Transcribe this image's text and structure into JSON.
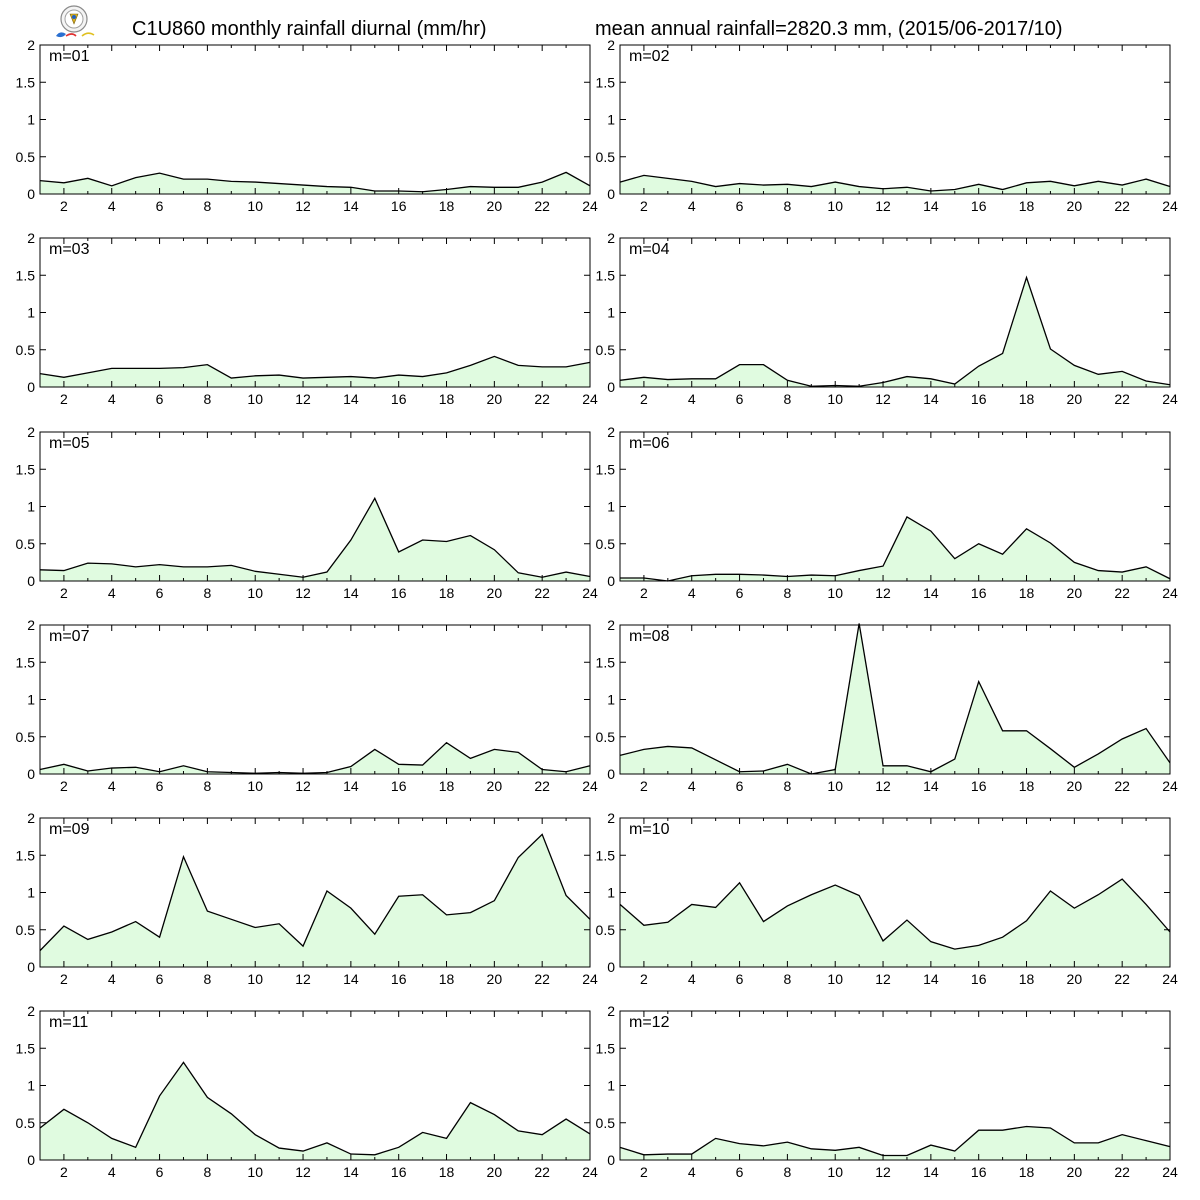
{
  "header": {
    "title_left": "C1U860 monthly rainfall diurnal (mm/hr)",
    "title_right": "mean annual rainfall=2820.3 mm, (2015/06-2017/10)",
    "logo": "lab-seal-logo"
  },
  "colors": {
    "fill": "#e0fbe0",
    "line": "#000000",
    "frame": "#000000"
  },
  "chart_data": [
    {
      "type": "area",
      "label": "m=01",
      "x": [
        1,
        2,
        3,
        4,
        5,
        6,
        7,
        8,
        9,
        10,
        11,
        12,
        13,
        14,
        15,
        16,
        17,
        18,
        19,
        20,
        21,
        22,
        23,
        24
      ],
      "values": [
        0.18,
        0.15,
        0.21,
        0.11,
        0.22,
        0.28,
        0.2,
        0.2,
        0.17,
        0.16,
        0.14,
        0.12,
        0.1,
        0.09,
        0.04,
        0.04,
        0.03,
        0.06,
        0.1,
        0.09,
        0.09,
        0.16,
        0.29,
        0.11
      ],
      "xticks": [
        2,
        4,
        6,
        8,
        10,
        12,
        14,
        16,
        18,
        20,
        22,
        24
      ],
      "yticks": [
        "0",
        "0.5",
        "1",
        "1.5",
        "2"
      ],
      "xlim": [
        1,
        24
      ],
      "ylim": [
        0,
        2
      ]
    },
    {
      "type": "area",
      "label": "m=02",
      "x": [
        1,
        2,
        3,
        4,
        5,
        6,
        7,
        8,
        9,
        10,
        11,
        12,
        13,
        14,
        15,
        16,
        17,
        18,
        19,
        20,
        21,
        22,
        23,
        24
      ],
      "values": [
        0.16,
        0.25,
        0.21,
        0.17,
        0.1,
        0.14,
        0.12,
        0.13,
        0.1,
        0.16,
        0.1,
        0.07,
        0.09,
        0.04,
        0.06,
        0.13,
        0.06,
        0.15,
        0.17,
        0.11,
        0.17,
        0.12,
        0.2,
        0.1
      ],
      "xticks": [
        2,
        4,
        6,
        8,
        10,
        12,
        14,
        16,
        18,
        20,
        22,
        24
      ],
      "yticks": [
        "0",
        "0.5",
        "1",
        "1.5",
        "2"
      ],
      "xlim": [
        1,
        24
      ],
      "ylim": [
        0,
        2
      ]
    },
    {
      "type": "area",
      "label": "m=03",
      "x": [
        1,
        2,
        3,
        4,
        5,
        6,
        7,
        8,
        9,
        10,
        11,
        12,
        13,
        14,
        15,
        16,
        17,
        18,
        19,
        20,
        21,
        22,
        23,
        24
      ],
      "values": [
        0.18,
        0.13,
        0.19,
        0.25,
        0.25,
        0.25,
        0.26,
        0.3,
        0.12,
        0.15,
        0.16,
        0.12,
        0.13,
        0.14,
        0.12,
        0.16,
        0.14,
        0.19,
        0.29,
        0.41,
        0.29,
        0.27,
        0.27,
        0.33
      ],
      "xticks": [
        2,
        4,
        6,
        8,
        10,
        12,
        14,
        16,
        18,
        20,
        22,
        24
      ],
      "yticks": [
        "0",
        "0.5",
        "1",
        "1.5",
        "2"
      ],
      "xlim": [
        1,
        24
      ],
      "ylim": [
        0,
        2
      ]
    },
    {
      "type": "area",
      "label": "m=04",
      "x": [
        1,
        2,
        3,
        4,
        5,
        6,
        7,
        8,
        9,
        10,
        11,
        12,
        13,
        14,
        15,
        16,
        17,
        18,
        19,
        20,
        21,
        22,
        23,
        24
      ],
      "values": [
        0.09,
        0.13,
        0.1,
        0.11,
        0.11,
        0.3,
        0.3,
        0.09,
        0.01,
        0.02,
        0.01,
        0.06,
        0.14,
        0.11,
        0.04,
        0.28,
        0.45,
        1.47,
        0.51,
        0.29,
        0.17,
        0.21,
        0.08,
        0.03
      ],
      "xticks": [
        2,
        4,
        6,
        8,
        10,
        12,
        14,
        16,
        18,
        20,
        22,
        24
      ],
      "yticks": [
        "0",
        "0.5",
        "1",
        "1.5",
        "2"
      ],
      "xlim": [
        1,
        24
      ],
      "ylim": [
        0,
        2
      ]
    },
    {
      "type": "area",
      "label": "m=05",
      "x": [
        1,
        2,
        3,
        4,
        5,
        6,
        7,
        8,
        9,
        10,
        11,
        12,
        13,
        14,
        15,
        16,
        17,
        18,
        19,
        20,
        21,
        22,
        23,
        24
      ],
      "values": [
        0.15,
        0.14,
        0.24,
        0.23,
        0.19,
        0.22,
        0.19,
        0.19,
        0.21,
        0.13,
        0.09,
        0.05,
        0.12,
        0.55,
        1.11,
        0.39,
        0.55,
        0.53,
        0.61,
        0.42,
        0.11,
        0.05,
        0.12,
        0.06
      ],
      "xticks": [
        2,
        4,
        6,
        8,
        10,
        12,
        14,
        16,
        18,
        20,
        22,
        24
      ],
      "yticks": [
        "0",
        "0.5",
        "1",
        "1.5",
        "2"
      ],
      "xlim": [
        1,
        24
      ],
      "ylim": [
        0,
        2
      ]
    },
    {
      "type": "area",
      "label": "m=06",
      "x": [
        1,
        2,
        3,
        4,
        5,
        6,
        7,
        8,
        9,
        10,
        11,
        12,
        13,
        14,
        15,
        16,
        17,
        18,
        19,
        20,
        21,
        22,
        23,
        24
      ],
      "values": [
        0.04,
        0.04,
        0.0,
        0.07,
        0.09,
        0.09,
        0.08,
        0.06,
        0.08,
        0.07,
        0.14,
        0.2,
        0.86,
        0.67,
        0.3,
        0.5,
        0.36,
        0.7,
        0.51,
        0.25,
        0.14,
        0.12,
        0.19,
        0.03
      ],
      "xticks": [
        2,
        4,
        6,
        8,
        10,
        12,
        14,
        16,
        18,
        20,
        22,
        24
      ],
      "yticks": [
        "0",
        "0.5",
        "1",
        "1.5",
        "2"
      ],
      "xlim": [
        1,
        24
      ],
      "ylim": [
        0,
        2
      ]
    },
    {
      "type": "area",
      "label": "m=07",
      "x": [
        1,
        2,
        3,
        4,
        5,
        6,
        7,
        8,
        9,
        10,
        11,
        12,
        13,
        14,
        15,
        16,
        17,
        18,
        19,
        20,
        21,
        22,
        23,
        24
      ],
      "values": [
        0.06,
        0.13,
        0.04,
        0.08,
        0.09,
        0.03,
        0.11,
        0.03,
        0.02,
        0.01,
        0.02,
        0.01,
        0.02,
        0.1,
        0.33,
        0.13,
        0.12,
        0.42,
        0.21,
        0.33,
        0.29,
        0.06,
        0.03,
        0.11
      ],
      "xticks": [
        2,
        4,
        6,
        8,
        10,
        12,
        14,
        16,
        18,
        20,
        22,
        24
      ],
      "yticks": [
        "0",
        "0.5",
        "1",
        "1.5",
        "2"
      ],
      "xlim": [
        1,
        24
      ],
      "ylim": [
        0,
        2
      ]
    },
    {
      "type": "area",
      "label": "m=08",
      "x": [
        1,
        2,
        3,
        4,
        5,
        6,
        7,
        8,
        9,
        10,
        11,
        12,
        13,
        14,
        15,
        16,
        17,
        18,
        19,
        20,
        21,
        22,
        23,
        24
      ],
      "values": [
        0.25,
        0.33,
        0.37,
        0.35,
        0.19,
        0.03,
        0.04,
        0.13,
        0.0,
        0.06,
        2.02,
        0.11,
        0.11,
        0.03,
        0.2,
        1.24,
        0.58,
        0.58,
        0.34,
        0.09,
        0.27,
        0.47,
        0.61,
        0.15
      ],
      "xticks": [
        2,
        4,
        6,
        8,
        10,
        12,
        14,
        16,
        18,
        20,
        22,
        24
      ],
      "yticks": [
        "0",
        "0.5",
        "1",
        "1.5",
        "2"
      ],
      "xlim": [
        1,
        24
      ],
      "ylim": [
        0,
        2
      ]
    },
    {
      "type": "area",
      "label": "m=09",
      "x": [
        1,
        2,
        3,
        4,
        5,
        6,
        7,
        8,
        9,
        10,
        11,
        12,
        13,
        14,
        15,
        16,
        17,
        18,
        19,
        20,
        21,
        22,
        23,
        24
      ],
      "values": [
        0.22,
        0.55,
        0.37,
        0.47,
        0.61,
        0.4,
        1.48,
        0.75,
        0.64,
        0.53,
        0.58,
        0.28,
        1.02,
        0.79,
        0.44,
        0.95,
        0.97,
        0.7,
        0.73,
        0.89,
        1.47,
        1.78,
        0.96,
        0.64
      ],
      "xticks": [
        2,
        4,
        6,
        8,
        10,
        12,
        14,
        16,
        18,
        20,
        22,
        24
      ],
      "yticks": [
        "0",
        "0.5",
        "1",
        "1.5",
        "2"
      ],
      "xlim": [
        1,
        24
      ],
      "ylim": [
        0,
        2
      ]
    },
    {
      "type": "area",
      "label": "m=10",
      "x": [
        1,
        2,
        3,
        4,
        5,
        6,
        7,
        8,
        9,
        10,
        11,
        12,
        13,
        14,
        15,
        16,
        17,
        18,
        19,
        20,
        21,
        22,
        23,
        24
      ],
      "values": [
        0.84,
        0.56,
        0.6,
        0.84,
        0.8,
        1.13,
        0.61,
        0.82,
        0.97,
        1.1,
        0.96,
        0.35,
        0.63,
        0.34,
        0.24,
        0.29,
        0.4,
        0.62,
        1.02,
        0.79,
        0.97,
        1.18,
        0.84,
        0.47
      ],
      "xticks": [
        2,
        4,
        6,
        8,
        10,
        12,
        14,
        16,
        18,
        20,
        22,
        24
      ],
      "yticks": [
        "0",
        "0.5",
        "1",
        "1.5",
        "2"
      ],
      "xlim": [
        1,
        24
      ],
      "ylim": [
        0,
        2
      ]
    },
    {
      "type": "area",
      "label": "m=11",
      "x": [
        1,
        2,
        3,
        4,
        5,
        6,
        7,
        8,
        9,
        10,
        11,
        12,
        13,
        14,
        15,
        16,
        17,
        18,
        19,
        20,
        21,
        22,
        23,
        24
      ],
      "values": [
        0.43,
        0.68,
        0.5,
        0.29,
        0.17,
        0.86,
        1.31,
        0.84,
        0.62,
        0.34,
        0.16,
        0.12,
        0.23,
        0.08,
        0.07,
        0.17,
        0.37,
        0.29,
        0.77,
        0.61,
        0.39,
        0.34,
        0.55,
        0.35
      ],
      "xticks": [
        2,
        4,
        6,
        8,
        10,
        12,
        14,
        16,
        18,
        20,
        22,
        24
      ],
      "yticks": [
        "0",
        "0.5",
        "1",
        "1.5",
        "2"
      ],
      "xlim": [
        1,
        24
      ],
      "ylim": [
        0,
        2
      ]
    },
    {
      "type": "area",
      "label": "m=12",
      "x": [
        1,
        2,
        3,
        4,
        5,
        6,
        7,
        8,
        9,
        10,
        11,
        12,
        13,
        14,
        15,
        16,
        17,
        18,
        19,
        20,
        21,
        22,
        23,
        24
      ],
      "values": [
        0.17,
        0.07,
        0.08,
        0.08,
        0.29,
        0.22,
        0.19,
        0.24,
        0.15,
        0.13,
        0.17,
        0.06,
        0.06,
        0.2,
        0.12,
        0.4,
        0.4,
        0.45,
        0.43,
        0.23,
        0.23,
        0.34,
        0.26,
        0.18
      ],
      "xticks": [
        2,
        4,
        6,
        8,
        10,
        12,
        14,
        16,
        18,
        20,
        22,
        24
      ],
      "yticks": [
        "0",
        "0.5",
        "1",
        "1.5",
        "2"
      ],
      "xlim": [
        1,
        24
      ],
      "ylim": [
        0,
        2
      ]
    }
  ]
}
